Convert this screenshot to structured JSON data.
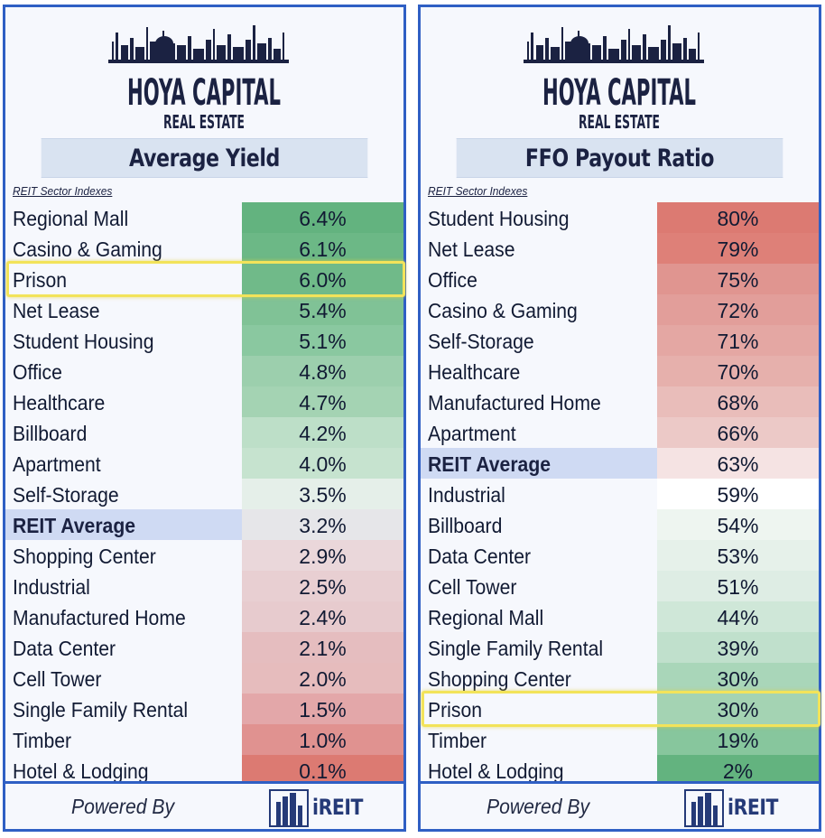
{
  "brand": {
    "line1": "HOYA CAPITAL",
    "line2": "REAL ESTATE",
    "color": "#1b2242"
  },
  "footer": {
    "powered_by": "Powered By",
    "ireit_label": "iREIT"
  },
  "chart_data": [
    {
      "type": "table",
      "title": "Average Yield",
      "subtitle": "REIT Sector Indexes",
      "highlighted": "Prison",
      "average_label": "REIT Average",
      "rows": [
        {
          "sector": "Regional Mall",
          "value": 6.4,
          "display": "6.4%"
        },
        {
          "sector": "Casino & Gaming",
          "value": 6.1,
          "display": "6.1%"
        },
        {
          "sector": "Prison",
          "value": 6.0,
          "display": "6.0%"
        },
        {
          "sector": "Net Lease",
          "value": 5.4,
          "display": "5.4%"
        },
        {
          "sector": "Student Housing",
          "value": 5.1,
          "display": "5.1%"
        },
        {
          "sector": "Office",
          "value": 4.8,
          "display": "4.8%"
        },
        {
          "sector": "Healthcare",
          "value": 4.7,
          "display": "4.7%"
        },
        {
          "sector": "Billboard",
          "value": 4.2,
          "display": "4.2%"
        },
        {
          "sector": "Apartment",
          "value": 4.0,
          "display": "4.0%"
        },
        {
          "sector": "Self-Storage",
          "value": 3.5,
          "display": "3.5%"
        },
        {
          "sector": "REIT Average",
          "value": 3.2,
          "display": "3.2%"
        },
        {
          "sector": "Shopping Center",
          "value": 2.9,
          "display": "2.9%"
        },
        {
          "sector": "Industrial",
          "value": 2.5,
          "display": "2.5%"
        },
        {
          "sector": "Manufactured Home",
          "value": 2.4,
          "display": "2.4%"
        },
        {
          "sector": "Data Center",
          "value": 2.1,
          "display": "2.1%"
        },
        {
          "sector": "Cell Tower",
          "value": 2.0,
          "display": "2.0%"
        },
        {
          "sector": "Single Family Rental",
          "value": 1.5,
          "display": "1.5%"
        },
        {
          "sector": "Timber",
          "value": 1.0,
          "display": "1.0%"
        },
        {
          "sector": "Hotel & Lodging",
          "value": 0.1,
          "display": "0.1%"
        }
      ],
      "colors": [
        "#63b37f",
        "#6cb886",
        "#70ba89",
        "#80c296",
        "#8ac8a0",
        "#9ccfad",
        "#a4d3b3",
        "#bddfc8",
        "#c6e3cf",
        "#e5efe9",
        "#e6e6e9",
        "#ead7da",
        "#e8cfd2",
        "#e7cbce",
        "#e5bdbf",
        "#e6bcbd",
        "#e3a7a9",
        "#e09290",
        "#dc7a72"
      ]
    },
    {
      "type": "table",
      "title": "FFO Payout Ratio",
      "subtitle": "REIT Sector Indexes",
      "highlighted": "Prison",
      "average_label": "REIT Average",
      "rows": [
        {
          "sector": "Student Housing",
          "value": 80,
          "display": "80%"
        },
        {
          "sector": "Net Lease",
          "value": 79,
          "display": "79%"
        },
        {
          "sector": "Office",
          "value": 75,
          "display": "75%"
        },
        {
          "sector": "Casino & Gaming",
          "value": 72,
          "display": "72%"
        },
        {
          "sector": "Self-Storage",
          "value": 71,
          "display": "71%"
        },
        {
          "sector": "Healthcare",
          "value": 70,
          "display": "70%"
        },
        {
          "sector": "Manufactured Home",
          "value": 68,
          "display": "68%"
        },
        {
          "sector": "Apartment",
          "value": 66,
          "display": "66%"
        },
        {
          "sector": "REIT Average",
          "value": 63,
          "display": "63%"
        },
        {
          "sector": "Industrial",
          "value": 59,
          "display": "59%"
        },
        {
          "sector": "Billboard",
          "value": 54,
          "display": "54%"
        },
        {
          "sector": "Data Center",
          "value": 53,
          "display": "53%"
        },
        {
          "sector": "Cell Tower",
          "value": 51,
          "display": "51%"
        },
        {
          "sector": "Regional Mall",
          "value": 44,
          "display": "44%"
        },
        {
          "sector": "Single Family Rental",
          "value": 39,
          "display": "39%"
        },
        {
          "sector": "Shopping Center",
          "value": 30,
          "display": "30%"
        },
        {
          "sector": "Prison",
          "value": 30,
          "display": "30%"
        },
        {
          "sector": "Timber",
          "value": 19,
          "display": "19%"
        },
        {
          "sector": "Hotel & Lodging",
          "value": 2,
          "display": "2%"
        }
      ],
      "colors": [
        "#dc7a72",
        "#de8078",
        "#e09590",
        "#e29e9a",
        "#e4a7a3",
        "#e6b0ac",
        "#e9bdba",
        "#ecc9c7",
        "#f5e3e3",
        "#ffffff",
        "#eef5f0",
        "#e6f1ea",
        "#deede4",
        "#cfe7d8",
        "#c0e0cc",
        "#a9d6b9",
        "#a4d3b3",
        "#87c69d",
        "#63b37f"
      ]
    }
  ]
}
